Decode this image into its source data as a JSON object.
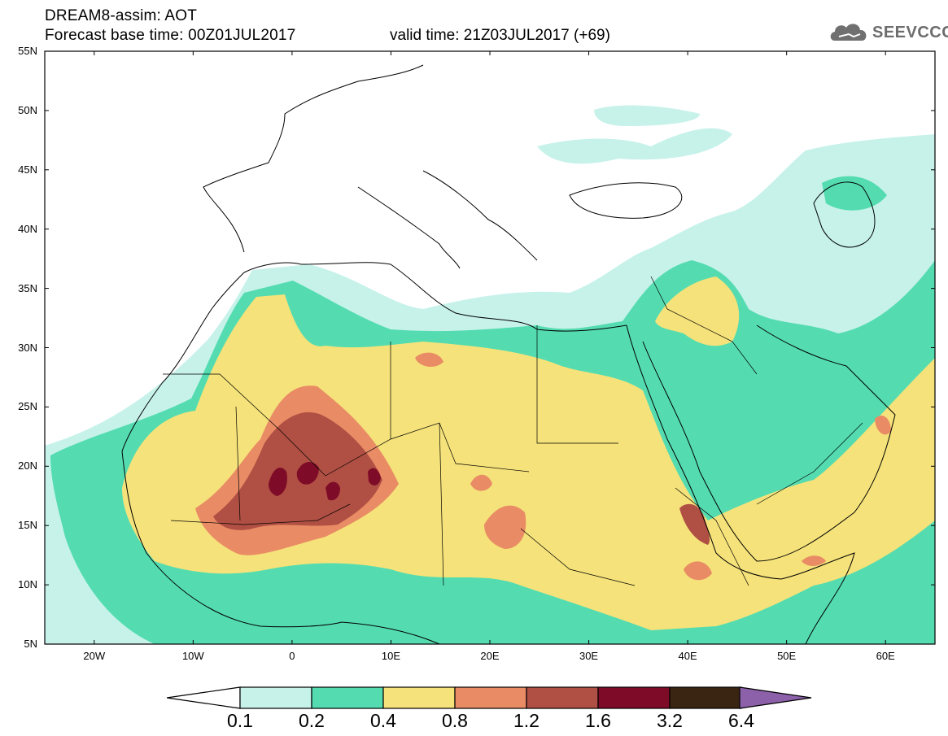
{
  "header": {
    "line1": "DREAM8-assim: AOT",
    "line2": "Forecast base time: 00Z01JUL2017",
    "valid": "valid time: 21Z03JUL2017 (+69)",
    "logo": "SEEVCCC"
  },
  "map": {
    "lat_labels": [
      "55N",
      "50N",
      "45N",
      "40N",
      "35N",
      "30N",
      "25N",
      "20N",
      "15N",
      "10N",
      "5N"
    ],
    "lon_labels": [
      "20W",
      "10W",
      "0",
      "10E",
      "20E",
      "30E",
      "40E",
      "50E",
      "60E"
    ],
    "lon_range": [
      -25,
      65
    ],
    "lat_range": [
      5,
      55
    ]
  },
  "legend": {
    "levels": [
      "0.1",
      "0.2",
      "0.4",
      "0.8",
      "1.2",
      "1.6",
      "3.2",
      "6.4"
    ],
    "colors": [
      "#c6f2ea",
      "#54dcb0",
      "#f5e27a",
      "#e98c65",
      "#b04f43",
      "#7e0c28",
      "#3a2412",
      "#8c61aa"
    ]
  }
}
